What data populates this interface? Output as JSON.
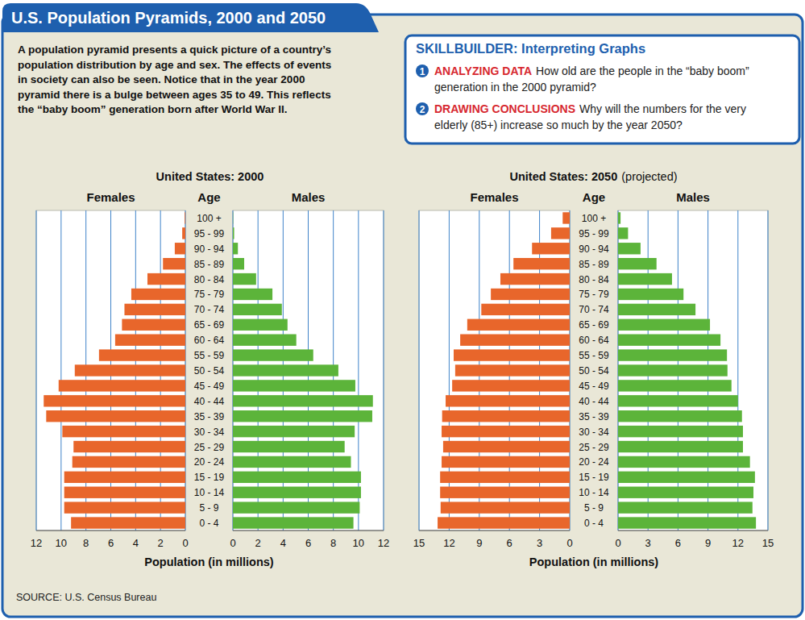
{
  "header": {
    "title": "U.S. Population Pyramids, 2000 and 2050"
  },
  "intro": {
    "lines": [
      "A population pyramid presents a quick picture of a country’s",
      "population distribution by age and sex. The effects of events",
      "in society can also be seen. Notice that in the year 2000",
      "pyramid there is a bulge between ages 35 to 49. This reflects",
      "the “baby boom” generation born after World War II."
    ]
  },
  "skillbuilder": {
    "title": "SKILLBUILDER: Interpreting Graphs",
    "items": [
      {
        "number": 1,
        "label": "ANALYZING DATA",
        "lines": [
          "How old are the people in the “baby boom”",
          "generation in the 2000 pyramid?"
        ]
      },
      {
        "number": 2,
        "label": "DRAWING CONCLUSIONS",
        "lines": [
          "Why will the numbers for the very",
          "elderly (85+) increase so much by the year 2050?"
        ]
      }
    ]
  },
  "source": "SOURCE: U.S. Census Bureau",
  "chart_data": [
    {
      "type": "pyramid",
      "orientation": "horizontal",
      "grid": true,
      "title": "United States: 2000",
      "x_label": "Population (in millions)",
      "y_label": "Age",
      "categories": [
        "0 - 4",
        "5 - 9",
        "10 - 14",
        "15 - 19",
        "20 - 24",
        "25 - 29",
        "30 - 34",
        "35 - 39",
        "40 - 44",
        "45 - 49",
        "50 - 54",
        "55 - 59",
        "60 - 64",
        "65 - 69",
        "70 - 74",
        "75 - 79",
        "80 - 84",
        "85 - 89",
        "90 - 94",
        "95 - 99",
        "100 +"
      ],
      "series": [
        {
          "name": "Females",
          "color": "#e8662b",
          "values": [
            9.2,
            9.75,
            9.75,
            9.75,
            9.1,
            9.0,
            9.9,
            11.2,
            11.4,
            10.2,
            8.9,
            6.95,
            5.65,
            5.1,
            4.9,
            4.35,
            3.05,
            1.8,
            0.85,
            0.25,
            0.05
          ]
        },
        {
          "name": "Males",
          "color": "#5cb43a",
          "values": [
            9.6,
            10.1,
            10.2,
            10.2,
            9.4,
            8.9,
            9.7,
            11.1,
            11.15,
            9.75,
            8.4,
            6.4,
            5.05,
            4.35,
            3.9,
            3.15,
            1.85,
            0.9,
            0.4,
            0.1,
            0.02
          ]
        }
      ],
      "xlim": [
        0,
        12
      ],
      "xticks": [
        0,
        2,
        4,
        6,
        8,
        10,
        12
      ]
    },
    {
      "type": "pyramid",
      "orientation": "horizontal",
      "grid": true,
      "title": "United States: 2050",
      "subtitle": "(projected)",
      "x_label": "Population (in millions)",
      "y_label": "Age",
      "categories": [
        "0 - 4",
        "5 - 9",
        "10 - 14",
        "15 - 19",
        "20 - 24",
        "25 - 29",
        "30 - 34",
        "35 - 39",
        "40 - 44",
        "45 - 49",
        "50 - 54",
        "55 - 59",
        "60 - 64",
        "65 - 69",
        "70 - 74",
        "75 - 79",
        "80 - 84",
        "85 - 89",
        "90 - 94",
        "95 - 99",
        "100 +"
      ],
      "series": [
        {
          "name": "Females",
          "color": "#e8662b",
          "values": [
            13.15,
            12.85,
            12.9,
            12.9,
            12.75,
            12.6,
            12.75,
            12.7,
            12.35,
            11.7,
            11.4,
            11.55,
            10.9,
            10.2,
            8.8,
            7.85,
            6.9,
            5.6,
            3.75,
            1.85,
            0.7
          ]
        },
        {
          "name": "Males",
          "color": "#5cb43a",
          "values": [
            13.8,
            13.45,
            13.55,
            13.7,
            13.2,
            12.5,
            12.5,
            12.4,
            12.0,
            11.35,
            10.95,
            10.9,
            10.25,
            9.2,
            7.75,
            6.55,
            5.4,
            3.85,
            2.25,
            1.0,
            0.25
          ]
        }
      ],
      "xlim": [
        0,
        15
      ],
      "xticks": [
        0,
        3,
        6,
        9,
        12,
        15
      ]
    }
  ]
}
